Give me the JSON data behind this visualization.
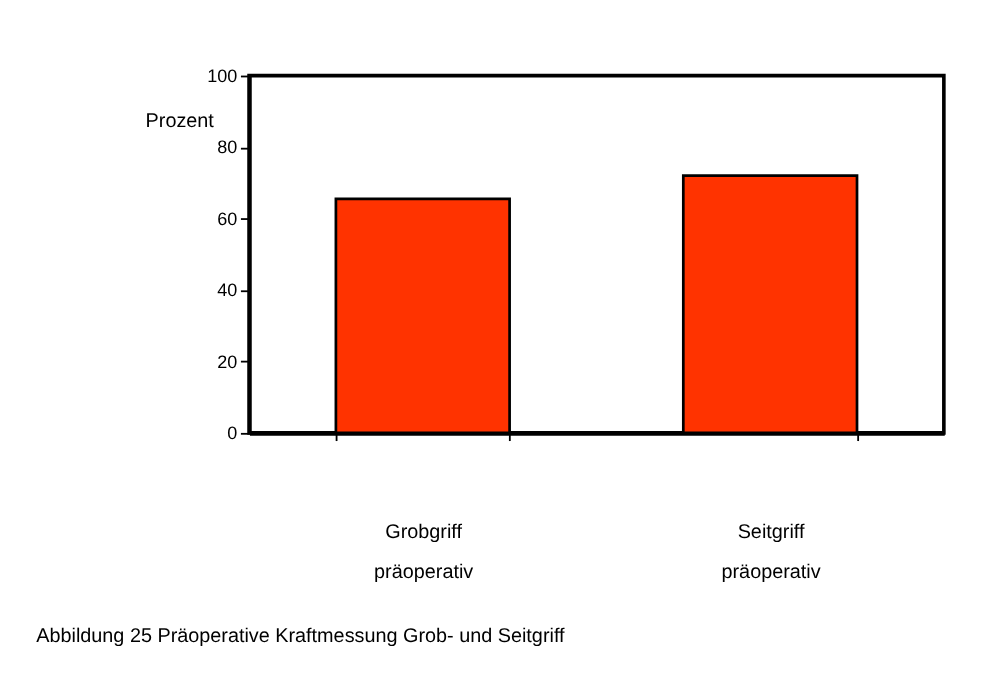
{
  "chart_data": {
    "type": "bar",
    "title": "Abbildung 25 Präoperative Kraftmessung Grob- und Seitgriff",
    "ylabel": "Prozent",
    "categories": [
      "Grobgriff präoperativ",
      "Seitgriff präoperativ"
    ],
    "values": [
      65.5,
      72
    ],
    "color": "#ff3300",
    "ylim": [
      0,
      100
    ],
    "yticks": [
      0,
      20,
      40,
      60,
      80,
      100
    ],
    "grid": false
  }
}
